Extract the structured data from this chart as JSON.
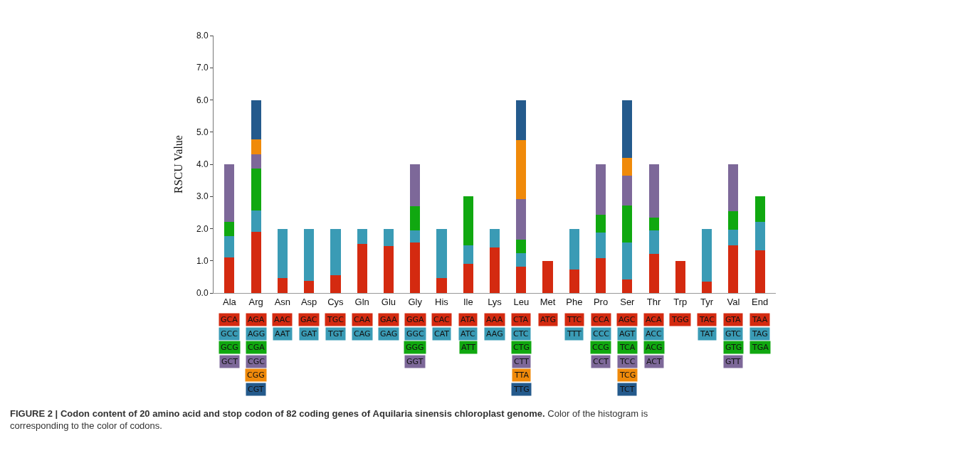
{
  "chart_data": {
    "type": "bar",
    "stacked": true,
    "ylabel": "RSCU Value",
    "categories": [
      "Ala",
      "Arg",
      "Asn",
      "Asp",
      "Cys",
      "Gln",
      "Glu",
      "Gly",
      "His",
      "Ile",
      "Lys",
      "Leu",
      "Met",
      "Phe",
      "Pro",
      "Ser",
      "Thr",
      "Trp",
      "Tyr",
      "Val",
      "End"
    ],
    "series": [
      {
        "color": "#d42a10",
        "values": [
          1.11,
          1.9,
          0.46,
          0.38,
          0.55,
          1.52,
          1.46,
          1.58,
          0.46,
          0.9,
          1.42,
          0.81,
          1.0,
          0.73,
          1.09,
          0.41,
          1.22,
          1.0,
          0.36,
          1.47,
          1.32
        ],
        "value_labels": [
          "GCA",
          "AGA",
          "AAC",
          "GAC",
          "TGC",
          "CAA",
          "GAA",
          "GGA",
          "CAC",
          "ATA",
          "AAA",
          "CTA",
          "ATG",
          "TTC",
          "CCA",
          "AGC",
          "ACA",
          "TGG",
          "TAC",
          "GTA",
          "TAA"
        ]
      },
      {
        "color": "#3a9bb5",
        "values": [
          0.66,
          0.66,
          1.54,
          1.62,
          1.45,
          0.48,
          0.54,
          0.37,
          1.54,
          0.59,
          0.58,
          0.42,
          null,
          1.27,
          0.79,
          1.16,
          0.72,
          null,
          1.64,
          0.5,
          0.9
        ],
        "value_labels": [
          "GCC",
          "AGG",
          "AAT",
          "GAT",
          "TGT",
          "CAG",
          "GAG",
          "GGC",
          "CAT",
          "ATC",
          "AAG",
          "CTC",
          null,
          "TTT",
          "CCC",
          "AGT",
          "ACC",
          null,
          "TAT",
          "GTC",
          "TAG"
        ]
      },
      {
        "color": "#10a810",
        "values": [
          0.45,
          1.31,
          null,
          null,
          null,
          null,
          null,
          0.75,
          null,
          1.51,
          null,
          0.43,
          null,
          null,
          0.55,
          1.14,
          0.4,
          null,
          null,
          0.58,
          0.78
        ],
        "value_labels": [
          "GCG",
          "CGA",
          null,
          null,
          null,
          null,
          null,
          "GGG",
          null,
          "ATT",
          null,
          "CTG",
          null,
          null,
          "CCG",
          "TCA",
          "ACG",
          null,
          null,
          "GTG",
          "TGA"
        ]
      },
      {
        "color": "#7d6899",
        "values": [
          1.78,
          0.45,
          null,
          null,
          null,
          null,
          null,
          1.3,
          null,
          null,
          null,
          1.26,
          null,
          null,
          1.57,
          0.93,
          1.66,
          null,
          null,
          1.45,
          null
        ],
        "value_labels": [
          "GCT",
          "CGC",
          null,
          null,
          null,
          null,
          null,
          "GGT",
          null,
          null,
          null,
          "CTT",
          null,
          null,
          "CCT",
          "TCC",
          "ACT",
          null,
          null,
          "GTT",
          null
        ]
      },
      {
        "color": "#f08a0a",
        "values": [
          null,
          0.45,
          null,
          null,
          null,
          null,
          null,
          null,
          null,
          null,
          null,
          1.83,
          null,
          null,
          null,
          0.57,
          null,
          null,
          null,
          null,
          null
        ],
        "value_labels": [
          null,
          "CGG",
          null,
          null,
          null,
          null,
          null,
          null,
          null,
          null,
          null,
          "TTA",
          null,
          null,
          null,
          "TCG",
          null,
          null,
          null,
          null,
          null
        ]
      },
      {
        "color": "#245a8c",
        "values": [
          null,
          1.23,
          null,
          null,
          null,
          null,
          null,
          null,
          null,
          null,
          null,
          1.25,
          null,
          null,
          null,
          1.79,
          null,
          null,
          null,
          null,
          null
        ],
        "value_labels": [
          null,
          "CGT",
          null,
          null,
          null,
          null,
          null,
          null,
          null,
          null,
          null,
          "TTG",
          null,
          null,
          null,
          "TCT",
          null,
          null,
          null,
          null,
          null
        ]
      }
    ],
    "ylim": [
      0,
      8
    ],
    "yticks": [
      {
        "value": 0,
        "label": "0.0"
      },
      {
        "value": 1,
        "label": "1.0"
      },
      {
        "value": 2,
        "label": "2.0"
      },
      {
        "value": 3,
        "label": "3.0"
      },
      {
        "value": 4,
        "label": "4.0"
      },
      {
        "value": 5,
        "label": "5.0"
      },
      {
        "value": 6,
        "label": "6.0"
      },
      {
        "value": 7,
        "label": "7.0"
      },
      {
        "value": 8,
        "label": "8.0"
      }
    ],
    "annotations": [
      "FIGURE 2 | Codon content of 20 amino acid and stop codon of 82 coding genes of Aquilaria sinensis chloroplast genome.",
      "Color of the histogram is corresponding to the color of codons."
    ]
  }
}
